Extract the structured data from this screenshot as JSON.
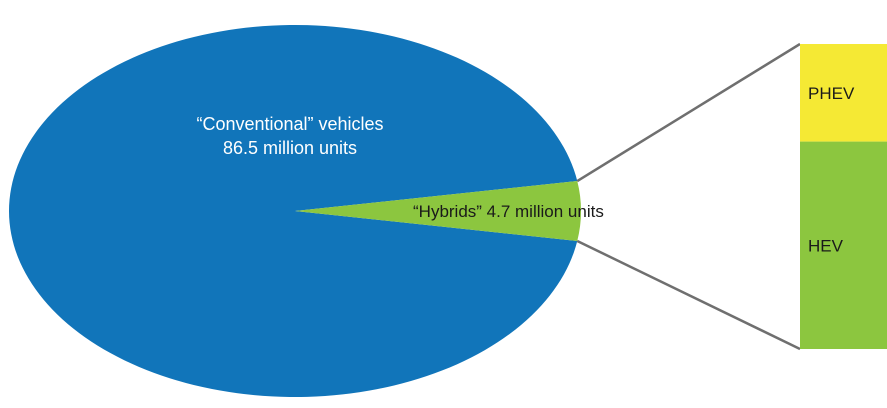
{
  "chart_data": {
    "type": "pie",
    "title": "",
    "slices": [
      {
        "label_lines": [
          "“Conventional” vehicles",
          "86.5 million units"
        ],
        "value": 86.5,
        "color": "#1175ba"
      },
      {
        "label_lines": [
          "“Hybrids” 4.7 million units"
        ],
        "value": 4.7,
        "color": "#8cc63f"
      }
    ],
    "breakdown": {
      "of_slice": "“Hybrids” 4.7 million units",
      "segments": [
        {
          "label": "PHEV",
          "share": 0.32,
          "color": "#f5e934"
        },
        {
          "label": "HEV",
          "share": 0.68,
          "color": "#8cc63f"
        }
      ]
    },
    "connector_color": "#6f6f6f",
    "label_colors": {
      "on_blue": "#ffffff",
      "on_green": "#1a1a1a"
    }
  }
}
